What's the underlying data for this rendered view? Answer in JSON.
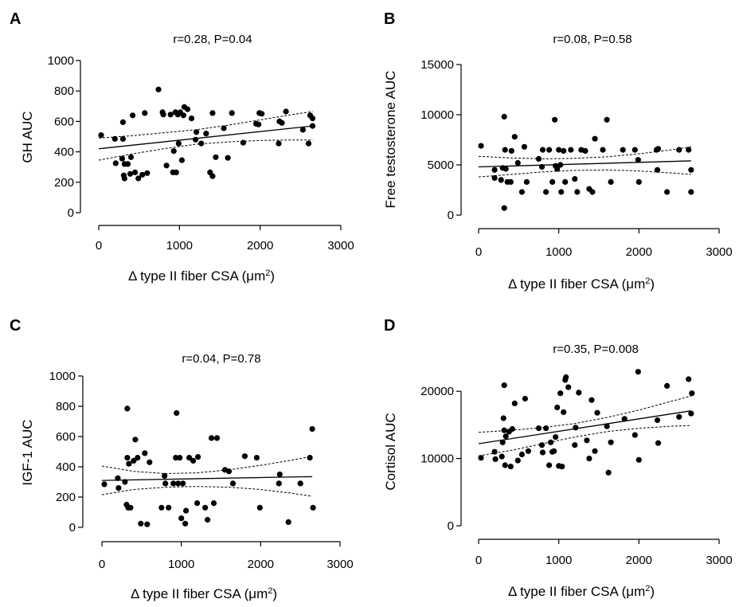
{
  "chart_data": [
    {
      "panel": "A",
      "type": "scatter",
      "title": "r=0.28, P=0.04",
      "xlabel": "Δ type II fiber CSA (μm²)",
      "ylabel": "GH AUC",
      "xlim": [
        0,
        3000
      ],
      "ylim": [
        0,
        1000
      ],
      "xticks": [
        0,
        1000,
        2000,
        3000
      ],
      "yticks": [
        0,
        200,
        400,
        600,
        800,
        1000
      ],
      "xtick_labels": [
        "0",
        "1000",
        "2000",
        "3000"
      ],
      "ytick_labels": [
        "0",
        "200",
        "400",
        "600",
        "800",
        "1000"
      ],
      "fit": {
        "x": [
          0,
          2650
        ],
        "y": [
          420,
          570
        ]
      },
      "ci_upper": {
        "x": [
          0,
          400,
          800,
          1200,
          1600,
          2000,
          2400,
          2650
        ],
        "y": [
          490,
          505,
          525,
          545,
          575,
          610,
          645,
          665
        ]
      },
      "ci_lower": {
        "x": [
          0,
          400,
          800,
          1200,
          1600,
          2000,
          2400,
          2650
        ],
        "y": [
          345,
          385,
          420,
          450,
          465,
          475,
          478,
          478
        ]
      },
      "points": [
        [
          30,
          510
        ],
        [
          200,
          485
        ],
        [
          210,
          325
        ],
        [
          290,
          355
        ],
        [
          300,
          595
        ],
        [
          300,
          485
        ],
        [
          310,
          245
        ],
        [
          320,
          225
        ],
        [
          320,
          320
        ],
        [
          360,
          320
        ],
        [
          390,
          255
        ],
        [
          400,
          365
        ],
        [
          420,
          640
        ],
        [
          450,
          265
        ],
        [
          490,
          225
        ],
        [
          540,
          250
        ],
        [
          570,
          655
        ],
        [
          600,
          260
        ],
        [
          740,
          810
        ],
        [
          790,
          660
        ],
        [
          800,
          645
        ],
        [
          840,
          310
        ],
        [
          890,
          645
        ],
        [
          920,
          265
        ],
        [
          930,
          405
        ],
        [
          950,
          660
        ],
        [
          960,
          265
        ],
        [
          980,
          645
        ],
        [
          990,
          455
        ],
        [
          1010,
          660
        ],
        [
          1030,
          345
        ],
        [
          1050,
          640
        ],
        [
          1060,
          695
        ],
        [
          1100,
          680
        ],
        [
          1150,
          620
        ],
        [
          1200,
          480
        ],
        [
          1210,
          530
        ],
        [
          1270,
          455
        ],
        [
          1330,
          520
        ],
        [
          1380,
          265
        ],
        [
          1410,
          240
        ],
        [
          1410,
          655
        ],
        [
          1450,
          365
        ],
        [
          1550,
          555
        ],
        [
          1600,
          360
        ],
        [
          1650,
          655
        ],
        [
          1790,
          460
        ],
        [
          1950,
          585
        ],
        [
          1980,
          580
        ],
        [
          1990,
          655
        ],
        [
          2020,
          650
        ],
        [
          2230,
          455
        ],
        [
          2240,
          600
        ],
        [
          2270,
          590
        ],
        [
          2320,
          665
        ],
        [
          2530,
          545
        ],
        [
          2600,
          455
        ],
        [
          2620,
          640
        ],
        [
          2650,
          620
        ],
        [
          2650,
          570
        ]
      ]
    },
    {
      "panel": "B",
      "type": "scatter",
      "title": "r=0.08, P=0.58",
      "xlabel": "Δ type II fiber CSA (μm²)",
      "ylabel": "Free testosterone AUC",
      "xlim": [
        0,
        3000
      ],
      "ylim": [
        0,
        15000
      ],
      "xticks": [
        0,
        1000,
        2000,
        3000
      ],
      "yticks": [
        0,
        5000,
        10000,
        15000
      ],
      "xtick_labels": [
        "0",
        "1000",
        "2000",
        "3000"
      ],
      "ytick_labels": [
        "0",
        "5000",
        "10000",
        "15000"
      ],
      "fit": {
        "x": [
          0,
          2650
        ],
        "y": [
          4800,
          5400
        ]
      },
      "ci_upper": {
        "x": [
          0,
          400,
          800,
          1200,
          1600,
          2000,
          2400,
          2650
        ],
        "y": [
          5850,
          5700,
          5600,
          5650,
          5800,
          6100,
          6500,
          6800
        ]
      },
      "ci_lower": {
        "x": [
          0,
          400,
          800,
          1200,
          1600,
          2000,
          2400,
          2650
        ],
        "y": [
          3800,
          4050,
          4300,
          4450,
          4500,
          4400,
          4200,
          4050
        ]
      },
      "points": [
        [
          30,
          6900
        ],
        [
          200,
          4500
        ],
        [
          200,
          3700
        ],
        [
          280,
          3500
        ],
        [
          300,
          4700
        ],
        [
          320,
          700
        ],
        [
          320,
          9800
        ],
        [
          330,
          6500
        ],
        [
          340,
          4600
        ],
        [
          360,
          3300
        ],
        [
          400,
          3300
        ],
        [
          410,
          6400
        ],
        [
          450,
          7800
        ],
        [
          490,
          5200
        ],
        [
          540,
          2300
        ],
        [
          570,
          6800
        ],
        [
          600,
          3300
        ],
        [
          750,
          5600
        ],
        [
          790,
          4800
        ],
        [
          800,
          6500
        ],
        [
          840,
          2300
        ],
        [
          880,
          6500
        ],
        [
          920,
          3300
        ],
        [
          950,
          9500
        ],
        [
          960,
          4900
        ],
        [
          980,
          4600
        ],
        [
          1000,
          6500
        ],
        [
          1020,
          5000
        ],
        [
          1030,
          2300
        ],
        [
          1060,
          6400
        ],
        [
          1080,
          3300
        ],
        [
          1150,
          6500
        ],
        [
          1200,
          3600
        ],
        [
          1230,
          2300
        ],
        [
          1280,
          6500
        ],
        [
          1330,
          6400
        ],
        [
          1380,
          2600
        ],
        [
          1420,
          2300
        ],
        [
          1450,
          7600
        ],
        [
          1550,
          6500
        ],
        [
          1600,
          9500
        ],
        [
          1650,
          3300
        ],
        [
          1800,
          6500
        ],
        [
          1950,
          6500
        ],
        [
          1990,
          5500
        ],
        [
          2000,
          3300
        ],
        [
          2220,
          6500
        ],
        [
          2230,
          4500
        ],
        [
          2240,
          6600
        ],
        [
          2350,
          2300
        ],
        [
          2500,
          6500
        ],
        [
          2620,
          6500
        ],
        [
          2650,
          4500
        ],
        [
          2650,
          2300
        ]
      ]
    },
    {
      "panel": "C",
      "type": "scatter",
      "title": "r=0.04, P=0.78",
      "xlabel": "Δ type II fiber CSA (μm²)",
      "ylabel": "IGF-1 AUC",
      "xlim": [
        0,
        3000
      ],
      "ylim": [
        0,
        1000
      ],
      "xticks": [
        0,
        1000,
        2000,
        3000
      ],
      "yticks": [
        0,
        200,
        400,
        600,
        800,
        1000
      ],
      "xtick_labels": [
        "0",
        "1000",
        "2000",
        "3000"
      ],
      "ytick_labels": [
        "0",
        "200",
        "400",
        "600",
        "800",
        "1000"
      ],
      "fit": {
        "x": [
          0,
          2650
        ],
        "y": [
          310,
          335
        ]
      },
      "ci_upper": {
        "x": [
          0,
          400,
          800,
          1200,
          1600,
          2000,
          2400,
          2650
        ],
        "y": [
          405,
          370,
          355,
          360,
          380,
          410,
          445,
          470
        ]
      },
      "ci_lower": {
        "x": [
          0,
          400,
          800,
          1200,
          1600,
          2000,
          2400,
          2650
        ],
        "y": [
          215,
          250,
          265,
          270,
          265,
          250,
          225,
          205
        ]
      },
      "points": [
        [
          30,
          285
        ],
        [
          200,
          325
        ],
        [
          210,
          260
        ],
        [
          290,
          300
        ],
        [
          310,
          150
        ],
        [
          320,
          460
        ],
        [
          320,
          785
        ],
        [
          330,
          130
        ],
        [
          340,
          420
        ],
        [
          360,
          130
        ],
        [
          400,
          440
        ],
        [
          420,
          580
        ],
        [
          450,
          460
        ],
        [
          490,
          25
        ],
        [
          540,
          490
        ],
        [
          570,
          20
        ],
        [
          600,
          430
        ],
        [
          750,
          130
        ],
        [
          790,
          340
        ],
        [
          800,
          290
        ],
        [
          840,
          130
        ],
        [
          900,
          290
        ],
        [
          930,
          460
        ],
        [
          940,
          755
        ],
        [
          960,
          290
        ],
        [
          980,
          460
        ],
        [
          1000,
          60
        ],
        [
          1020,
          290
        ],
        [
          1050,
          25
        ],
        [
          1060,
          110
        ],
        [
          1100,
          460
        ],
        [
          1150,
          440
        ],
        [
          1200,
          160
        ],
        [
          1210,
          465
        ],
        [
          1300,
          130
        ],
        [
          1330,
          50
        ],
        [
          1380,
          590
        ],
        [
          1410,
          160
        ],
        [
          1450,
          590
        ],
        [
          1550,
          380
        ],
        [
          1600,
          370
        ],
        [
          1650,
          290
        ],
        [
          1800,
          470
        ],
        [
          1950,
          460
        ],
        [
          1990,
          130
        ],
        [
          2230,
          290
        ],
        [
          2240,
          350
        ],
        [
          2350,
          35
        ],
        [
          2500,
          290
        ],
        [
          2620,
          460
        ],
        [
          2650,
          650
        ],
        [
          2660,
          130
        ]
      ]
    },
    {
      "panel": "D",
      "type": "scatter",
      "title": "r=0.35, P=0.008",
      "xlabel": "Δ type II fiber CSA (μm²)",
      "ylabel": "Cortisol AUC",
      "xlim": [
        0,
        3000
      ],
      "ylim": [
        0,
        25000
      ],
      "xticks": [
        0,
        1000,
        2000,
        3000
      ],
      "yticks": [
        0,
        10000,
        20000
      ],
      "xtick_labels": [
        "0",
        "1000",
        "2000",
        "3000"
      ],
      "ytick_labels": [
        "0",
        "10000",
        "20000"
      ],
      "fit": {
        "x": [
          0,
          2650
        ],
        "y": [
          12200,
          17100
        ]
      },
      "ci_upper": {
        "x": [
          0,
          400,
          800,
          1200,
          1600,
          2000,
          2400,
          2650
        ],
        "y": [
          13900,
          14200,
          14600,
          15200,
          16100,
          17200,
          18500,
          19300
        ]
      },
      "ci_lower": {
        "x": [
          0,
          400,
          800,
          1200,
          1600,
          2000,
          2400,
          2650
        ],
        "y": [
          10400,
          11200,
          12200,
          13200,
          14000,
          14500,
          14800,
          14900
        ]
      },
      "points": [
        [
          30,
          10100
        ],
        [
          200,
          11000
        ],
        [
          210,
          9900
        ],
        [
          290,
          10300
        ],
        [
          300,
          12400
        ],
        [
          310,
          16000
        ],
        [
          320,
          14200
        ],
        [
          320,
          20900
        ],
        [
          330,
          9000
        ],
        [
          340,
          13300
        ],
        [
          380,
          14000
        ],
        [
          400,
          8800
        ],
        [
          420,
          14400
        ],
        [
          450,
          18200
        ],
        [
          490,
          9700
        ],
        [
          540,
          10600
        ],
        [
          580,
          18900
        ],
        [
          620,
          11100
        ],
        [
          750,
          14500
        ],
        [
          790,
          12000
        ],
        [
          800,
          10900
        ],
        [
          840,
          14500
        ],
        [
          880,
          9000
        ],
        [
          900,
          12400
        ],
        [
          920,
          11000
        ],
        [
          940,
          11100
        ],
        [
          960,
          13200
        ],
        [
          980,
          17600
        ],
        [
          1000,
          8900
        ],
        [
          1020,
          19700
        ],
        [
          1040,
          8800
        ],
        [
          1060,
          16900
        ],
        [
          1080,
          21700
        ],
        [
          1090,
          22100
        ],
        [
          1120,
          20600
        ],
        [
          1200,
          12000
        ],
        [
          1210,
          14600
        ],
        [
          1250,
          19800
        ],
        [
          1350,
          12700
        ],
        [
          1380,
          10000
        ],
        [
          1410,
          18700
        ],
        [
          1450,
          11100
        ],
        [
          1480,
          16800
        ],
        [
          1600,
          14800
        ],
        [
          1620,
          7900
        ],
        [
          1650,
          12400
        ],
        [
          1820,
          15900
        ],
        [
          1950,
          13500
        ],
        [
          1990,
          22900
        ],
        [
          2000,
          9800
        ],
        [
          2230,
          15700
        ],
        [
          2240,
          12300
        ],
        [
          2350,
          20800
        ],
        [
          2500,
          16200
        ],
        [
          2620,
          21800
        ],
        [
          2650,
          16700
        ],
        [
          2660,
          19700
        ]
      ]
    }
  ]
}
